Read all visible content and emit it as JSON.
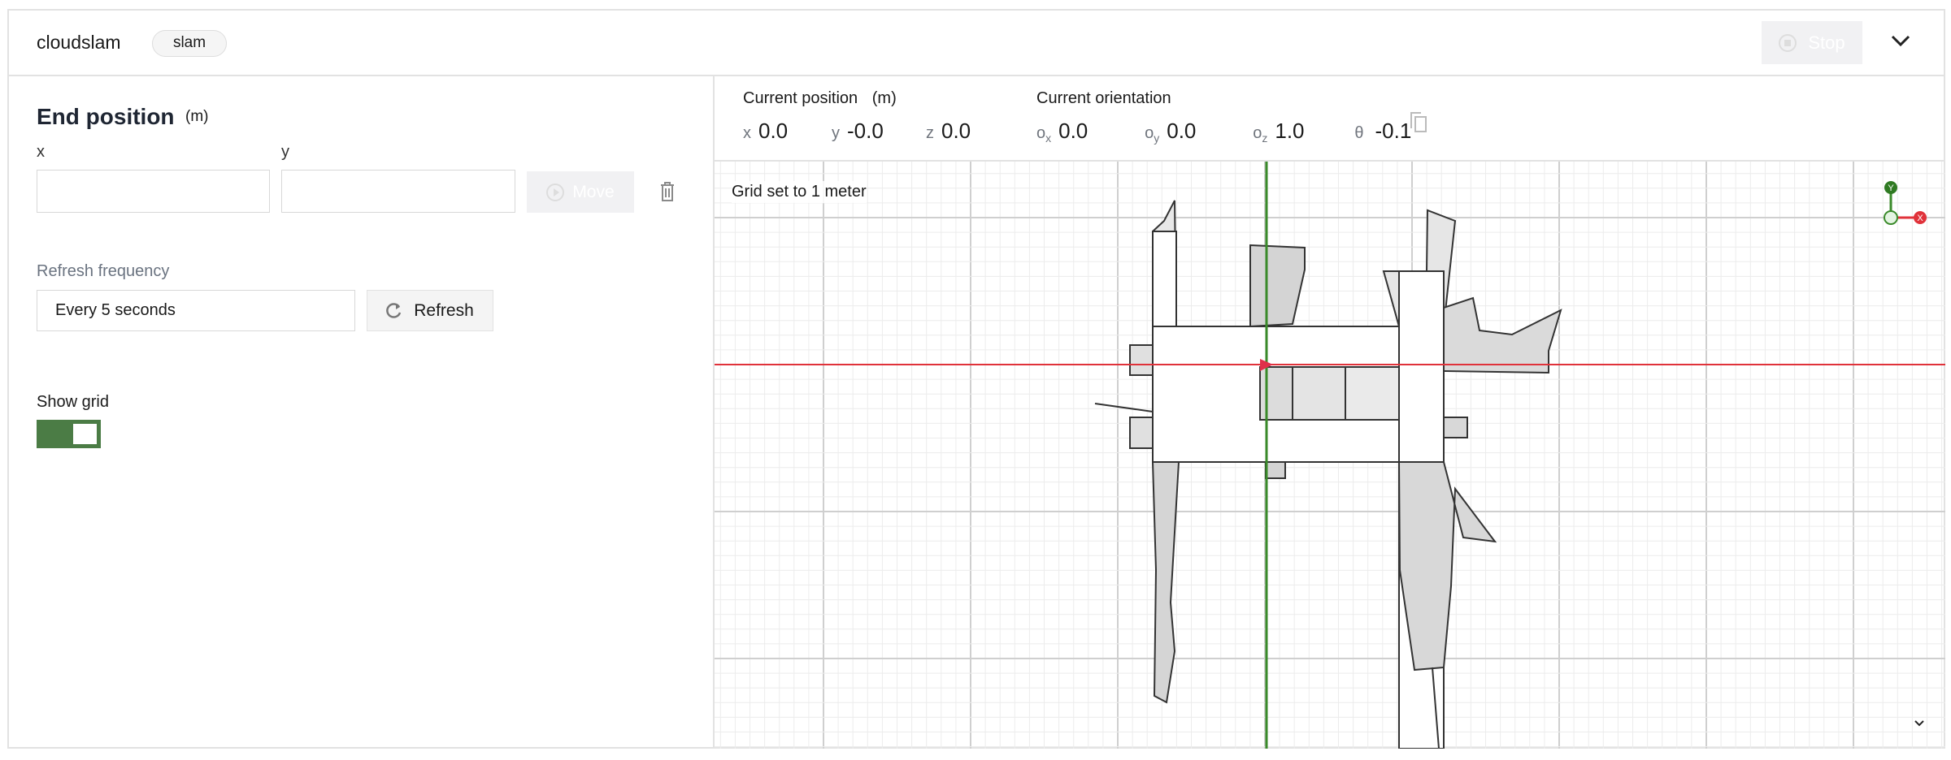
{
  "header": {
    "title": "cloudslam",
    "badge": "slam",
    "stop_label": "Stop"
  },
  "end_position": {
    "title": "End position",
    "unit": "(m)",
    "x_label": "x",
    "y_label": "y",
    "x_value": "",
    "y_value": "",
    "move_label": "Move"
  },
  "refresh": {
    "label": "Refresh frequency",
    "selected": "Every 5 seconds",
    "button_label": "Refresh"
  },
  "grid_toggle": {
    "label": "Show grid",
    "on": true
  },
  "current_position": {
    "title": "Current position",
    "unit": "(m)",
    "x_key": "x",
    "x": "0.0",
    "y_key": "y",
    "y": "-0.0",
    "z_key": "z",
    "z": "0.0"
  },
  "current_orientation": {
    "title": "Current orientation",
    "ox_key": "o",
    "ox_sub": "x",
    "ox": "0.0",
    "oy_key": "o",
    "oy_sub": "y",
    "oy": "0.0",
    "oz_key": "o",
    "oz_sub": "z",
    "oz": "1.0",
    "theta_key": "θ",
    "theta": "-0.1"
  },
  "map": {
    "grid_note": "Grid set to 1 meter",
    "axis_x_label": "X",
    "axis_y_label": "Y",
    "colors": {
      "x_axis": "#e0323a",
      "y_axis": "#3a8a2a",
      "robot": "#e0304a",
      "toggle": "#4b7c45"
    }
  }
}
